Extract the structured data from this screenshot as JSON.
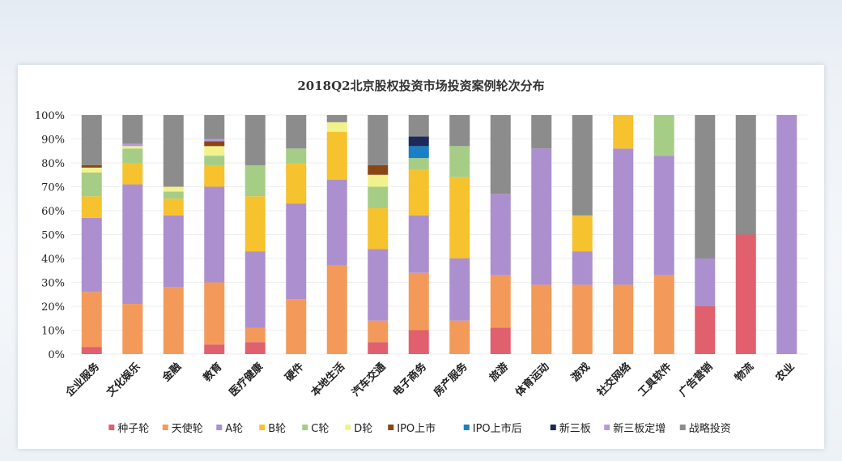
{
  "chart_data": {
    "type": "bar",
    "stacked": true,
    "title": "2018Q2北京股权投资市场投资案例轮次分布",
    "xlabel": "",
    "ylabel": "",
    "ylim": [
      0,
      100
    ],
    "yticks": [
      "0%",
      "10%",
      "20%",
      "30%",
      "40%",
      "50%",
      "60%",
      "70%",
      "80%",
      "90%",
      "100%"
    ],
    "legend_position": "bottom",
    "categories": [
      "企业服务",
      "文化娱乐",
      "金融",
      "教育",
      "医疗健康",
      "硬件",
      "本地生活",
      "汽车交通",
      "电子商务",
      "房产服务",
      "旅游",
      "体育运动",
      "游戏",
      "社交网络",
      "工具软件",
      "广告营销",
      "物流",
      "农业"
    ],
    "series": [
      {
        "name": "种子轮",
        "color": "#e0606e",
        "values": [
          3,
          0,
          0,
          4,
          5,
          0,
          0,
          5,
          10,
          0,
          11,
          0,
          0,
          0,
          0,
          20,
          50,
          0
        ]
      },
      {
        "name": "天使轮",
        "color": "#f39a5a",
        "values": [
          23,
          21,
          28,
          26,
          6,
          23,
          37,
          9,
          24,
          14,
          22,
          29,
          29,
          29,
          33,
          0,
          0,
          0
        ]
      },
      {
        "name": "A轮",
        "color": "#ac8fcf",
        "values": [
          31,
          50,
          30,
          40,
          32,
          40,
          36,
          30,
          24,
          26,
          34,
          57,
          14,
          57,
          50,
          20,
          0,
          100
        ]
      },
      {
        "name": "B轮",
        "color": "#f6c22e",
        "values": [
          9,
          9,
          7,
          9,
          23,
          17,
          20,
          17,
          19,
          34,
          0,
          0,
          15,
          14,
          0,
          0,
          0,
          0
        ]
      },
      {
        "name": "C轮",
        "color": "#a6cd85",
        "values": [
          10,
          6,
          3,
          4,
          13,
          6,
          0,
          9,
          5,
          13,
          0,
          0,
          0,
          0,
          17,
          0,
          0,
          0
        ]
      },
      {
        "name": "D轮",
        "color": "#f2f28c",
        "values": [
          2,
          1,
          2,
          4,
          0,
          0,
          4,
          5,
          0,
          0,
          0,
          0,
          0,
          0,
          0,
          0,
          0,
          0
        ]
      },
      {
        "name": "IPO上市",
        "color": "#8b4513",
        "values": [
          1,
          0,
          0,
          2,
          0,
          0,
          0,
          4,
          0,
          0,
          0,
          0,
          0,
          0,
          0,
          0,
          0,
          0
        ]
      },
      {
        "name": "IPO上市后",
        "color": "#1a7fc4",
        "values": [
          0,
          0,
          0,
          0,
          0,
          0,
          0,
          0,
          5,
          0,
          0,
          0,
          0,
          0,
          0,
          0,
          0,
          0
        ]
      },
      {
        "name": "新三板",
        "color": "#1b2a5a",
        "values": [
          0,
          0,
          0,
          0,
          0,
          0,
          0,
          0,
          4,
          0,
          0,
          0,
          0,
          0,
          0,
          0,
          0,
          0
        ]
      },
      {
        "name": "新三板定增",
        "color": "#b59ad9",
        "values": [
          0,
          1,
          0,
          1,
          0,
          0,
          0,
          0,
          0,
          0,
          0,
          0,
          0,
          0,
          0,
          0,
          0,
          0
        ]
      },
      {
        "name": "战略投资",
        "color": "#8c8c8c",
        "values": [
          21,
          12,
          30,
          10,
          21,
          14,
          3,
          21,
          9,
          13,
          33,
          14,
          42,
          0,
          0,
          60,
          50,
          0
        ]
      }
    ]
  }
}
